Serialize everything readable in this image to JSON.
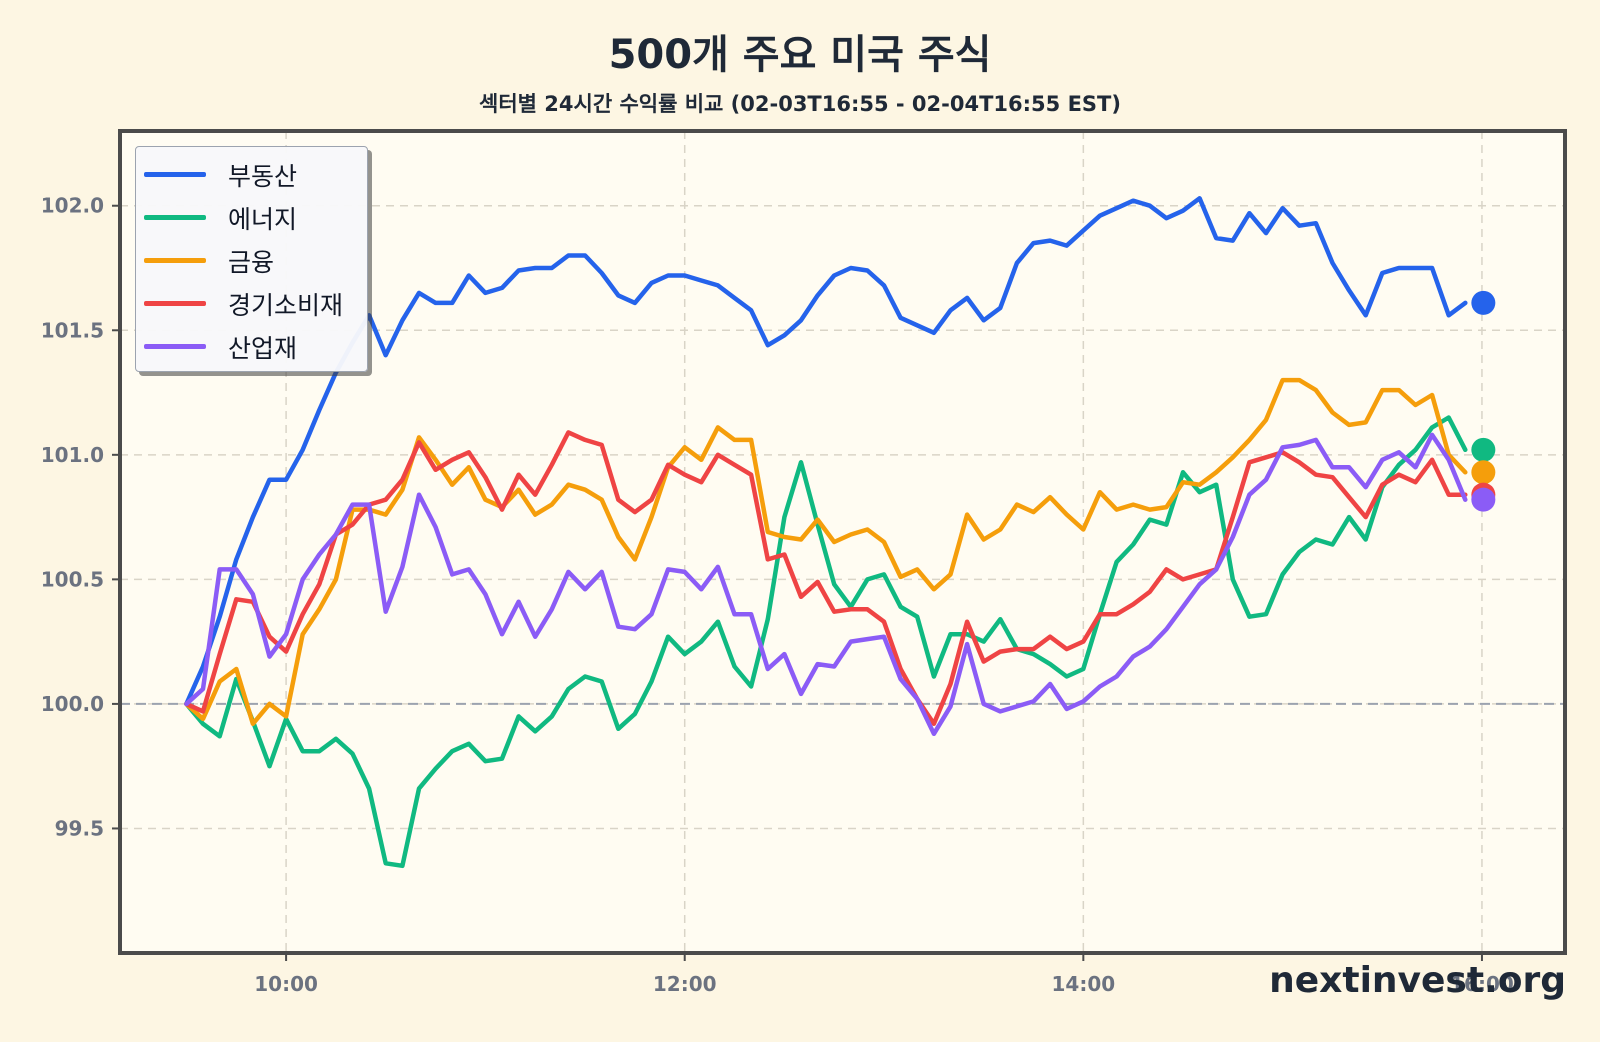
{
  "chart_data": {
    "type": "line",
    "title": "500개 주요 미국 주식",
    "subtitle": "섹터별 24시간 수익률 비교 (02-03T16:55 - 02-04T16:55 EST)",
    "xlabel": "",
    "ylabel": "",
    "x_ticks": [
      "10:00",
      "12:00",
      "14:00",
      "16:00"
    ],
    "x_tick_values": [
      "10:00",
      "12:00",
      "14:00",
      "16:00"
    ],
    "xlim": [
      "09:10",
      "16:25"
    ],
    "y_ticks": [
      "99.5",
      "100.0",
      "100.5",
      "101.0",
      "101.5",
      "102.0"
    ],
    "ylim": [
      99.0,
      102.3
    ],
    "baseline": 100.0,
    "grid": true,
    "legend_position": "top-left",
    "x": [
      "09:30",
      "09:35",
      "09:40",
      "09:45",
      "09:50",
      "09:55",
      "10:00",
      "10:05",
      "10:10",
      "10:15",
      "10:20",
      "10:25",
      "10:30",
      "10:35",
      "10:40",
      "10:45",
      "10:50",
      "10:55",
      "11:00",
      "11:05",
      "11:10",
      "11:15",
      "11:20",
      "11:25",
      "11:30",
      "11:35",
      "11:40",
      "11:45",
      "11:50",
      "11:55",
      "12:00",
      "12:05",
      "12:10",
      "12:15",
      "12:20",
      "12:25",
      "12:30",
      "12:35",
      "12:40",
      "12:45",
      "12:50",
      "12:55",
      "13:00",
      "13:05",
      "13:10",
      "13:15",
      "13:20",
      "13:25",
      "13:30",
      "13:35",
      "13:40",
      "13:45",
      "13:50",
      "13:55",
      "14:00",
      "14:05",
      "14:10",
      "14:15",
      "14:20",
      "14:25",
      "14:30",
      "14:35",
      "14:40",
      "14:45",
      "14:50",
      "14:55",
      "15:00",
      "15:05",
      "15:10",
      "15:15",
      "15:20",
      "15:25",
      "15:30",
      "15:35",
      "15:40",
      "15:45",
      "15:50",
      "15:55"
    ],
    "series": [
      {
        "name": "부동산",
        "color": "#2563eb",
        "end_value": 101.61,
        "values": [
          100.0,
          100.15,
          100.35,
          100.58,
          100.75,
          100.9,
          100.9,
          101.02,
          101.18,
          101.33,
          101.45,
          101.56,
          101.4,
          101.54,
          101.65,
          101.61,
          101.61,
          101.72,
          101.65,
          101.67,
          101.74,
          101.75,
          101.75,
          101.8,
          101.8,
          101.73,
          101.64,
          101.61,
          101.69,
          101.72,
          101.72,
          101.7,
          101.68,
          101.63,
          101.58,
          101.44,
          101.48,
          101.54,
          101.64,
          101.72,
          101.75,
          101.74,
          101.68,
          101.55,
          101.52,
          101.49,
          101.58,
          101.63,
          101.54,
          101.59,
          101.77,
          101.85,
          101.86,
          101.84,
          101.9,
          101.96,
          101.99,
          102.02,
          102.0,
          101.95,
          101.98,
          102.03,
          101.87,
          101.86,
          101.97,
          101.89,
          101.99,
          101.92,
          101.93,
          101.77,
          101.66,
          101.56,
          101.73,
          101.75,
          101.75,
          101.75,
          101.56,
          101.61
        ]
      },
      {
        "name": "에너지",
        "color": "#10b981",
        "end_value": 101.02,
        "values": [
          100.0,
          99.92,
          99.87,
          100.1,
          99.93,
          99.75,
          99.94,
          99.81,
          99.81,
          99.86,
          99.8,
          99.66,
          99.36,
          99.35,
          99.66,
          99.74,
          99.81,
          99.84,
          99.77,
          99.78,
          99.95,
          99.89,
          99.95,
          100.06,
          100.11,
          100.09,
          99.9,
          99.96,
          100.09,
          100.27,
          100.2,
          100.25,
          100.33,
          100.15,
          100.07,
          100.34,
          100.75,
          100.97,
          100.72,
          100.48,
          100.39,
          100.5,
          100.52,
          100.39,
          100.35,
          100.11,
          100.28,
          100.28,
          100.25,
          100.34,
          100.22,
          100.2,
          100.16,
          100.11,
          100.14,
          100.36,
          100.57,
          100.64,
          100.74,
          100.72,
          100.93,
          100.85,
          100.88,
          100.5,
          100.35,
          100.36,
          100.52,
          100.61,
          100.66,
          100.64,
          100.75,
          100.66,
          100.87,
          100.96,
          101.02,
          101.11,
          101.15,
          101.02
        ]
      },
      {
        "name": "금융",
        "color": "#f59e0b",
        "end_value": 100.93,
        "values": [
          100.0,
          99.94,
          100.09,
          100.14,
          99.92,
          100.0,
          99.95,
          100.28,
          100.38,
          100.5,
          100.78,
          100.78,
          100.76,
          100.86,
          101.07,
          100.98,
          100.88,
          100.95,
          100.82,
          100.79,
          100.86,
          100.76,
          100.8,
          100.88,
          100.86,
          100.82,
          100.67,
          100.58,
          100.75,
          100.95,
          101.03,
          100.98,
          101.11,
          101.06,
          101.06,
          100.69,
          100.67,
          100.66,
          100.74,
          100.65,
          100.68,
          100.7,
          100.65,
          100.51,
          100.54,
          100.46,
          100.52,
          100.76,
          100.66,
          100.7,
          100.8,
          100.77,
          100.83,
          100.76,
          100.7,
          100.85,
          100.78,
          100.8,
          100.78,
          100.79,
          100.89,
          100.88,
          100.93,
          100.99,
          101.06,
          101.14,
          101.3,
          101.3,
          101.26,
          101.17,
          101.12,
          101.13,
          101.26,
          101.26,
          101.2,
          101.24,
          101.0,
          100.93
        ]
      },
      {
        "name": "경기소비재",
        "color": "#ef4444",
        "end_value": 100.84,
        "values": [
          100.0,
          99.97,
          100.2,
          100.42,
          100.41,
          100.27,
          100.21,
          100.36,
          100.48,
          100.68,
          100.72,
          100.8,
          100.82,
          100.9,
          101.05,
          100.94,
          100.98,
          101.01,
          100.91,
          100.78,
          100.92,
          100.84,
          100.96,
          101.09,
          101.06,
          101.04,
          100.82,
          100.77,
          100.82,
          100.96,
          100.92,
          100.89,
          101.0,
          100.96,
          100.92,
          100.58,
          100.6,
          100.43,
          100.49,
          100.37,
          100.38,
          100.38,
          100.33,
          100.14,
          100.02,
          99.92,
          100.08,
          100.33,
          100.17,
          100.21,
          100.22,
          100.22,
          100.27,
          100.22,
          100.25,
          100.36,
          100.36,
          100.4,
          100.45,
          100.54,
          100.5,
          100.52,
          100.54,
          100.75,
          100.97,
          100.99,
          101.01,
          100.97,
          100.92,
          100.91,
          100.83,
          100.75,
          100.88,
          100.92,
          100.89,
          100.98,
          100.84,
          100.84
        ]
      },
      {
        "name": "산업재",
        "color": "#8b5cf6",
        "end_value": 100.82,
        "values": [
          100.0,
          100.06,
          100.54,
          100.54,
          100.44,
          100.19,
          100.28,
          100.5,
          100.6,
          100.68,
          100.8,
          100.8,
          100.37,
          100.55,
          100.84,
          100.71,
          100.52,
          100.54,
          100.44,
          100.28,
          100.41,
          100.27,
          100.38,
          100.53,
          100.46,
          100.53,
          100.31,
          100.3,
          100.36,
          100.54,
          100.53,
          100.46,
          100.55,
          100.36,
          100.36,
          100.14,
          100.2,
          100.04,
          100.16,
          100.15,
          100.25,
          100.26,
          100.27,
          100.1,
          100.02,
          99.88,
          99.99,
          100.24,
          100.0,
          99.97,
          99.99,
          100.01,
          100.08,
          99.98,
          100.01,
          100.07,
          100.11,
          100.19,
          100.23,
          100.3,
          100.39,
          100.48,
          100.54,
          100.67,
          100.84,
          100.9,
          101.03,
          101.04,
          101.06,
          100.95,
          100.95,
          100.87,
          100.98,
          101.01,
          100.95,
          101.08,
          100.98,
          100.82
        ]
      }
    ]
  },
  "watermark": "nextinvest.org"
}
